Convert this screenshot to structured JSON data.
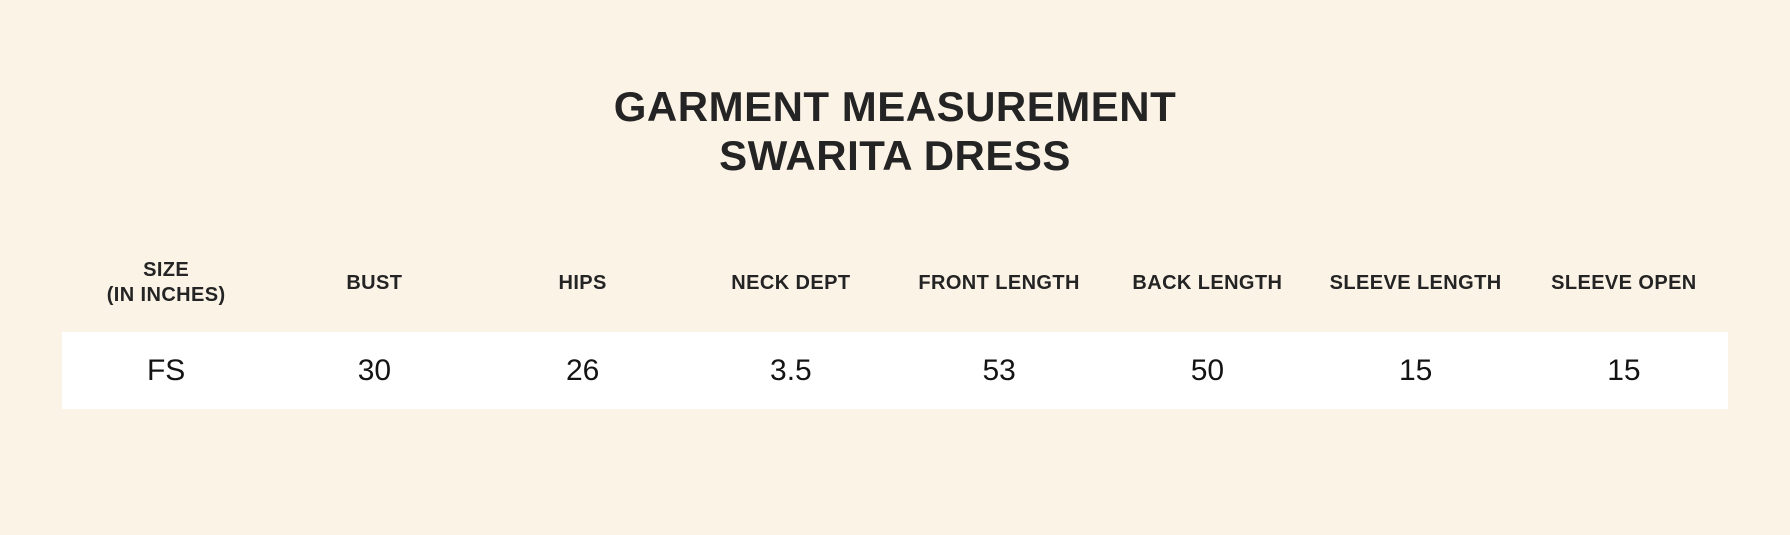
{
  "page": {
    "background_color": "#FCF3E7",
    "text_color": "#242424",
    "row_background_color": "#FFFFFF"
  },
  "title": {
    "line1": "GARMENT MEASUREMENT",
    "line2": "SWARITA DRESS"
  },
  "table": {
    "columns": [
      {
        "label": "SIZE",
        "sublabel": "(IN INCHES)"
      },
      {
        "label": "BUST",
        "sublabel": ""
      },
      {
        "label": "HIPS",
        "sublabel": ""
      },
      {
        "label": "NECK DEPT",
        "sublabel": ""
      },
      {
        "label": "FRONT LENGTH",
        "sublabel": ""
      },
      {
        "label": "BACK LENGTH",
        "sublabel": ""
      },
      {
        "label": "SLEEVE LENGTH",
        "sublabel": ""
      },
      {
        "label": "SLEEVE OPEN",
        "sublabel": ""
      }
    ],
    "row": {
      "size": "FS",
      "bust": "30",
      "hips": "26",
      "neck_dept": "3.5",
      "front_length": "53",
      "back_length": "50",
      "sleeve_length": "15",
      "sleeve_open": "15"
    }
  },
  "chart_data": {
    "type": "table",
    "title": "GARMENT MEASUREMENT SWARITA DRESS",
    "units": "inches",
    "columns": [
      "SIZE (IN INCHES)",
      "BUST",
      "HIPS",
      "NECK DEPT",
      "FRONT LENGTH",
      "BACK LENGTH",
      "SLEEVE LENGTH",
      "SLEEVE OPEN"
    ],
    "rows": [
      [
        "FS",
        30,
        26,
        3.5,
        53,
        50,
        15,
        15
      ]
    ]
  }
}
